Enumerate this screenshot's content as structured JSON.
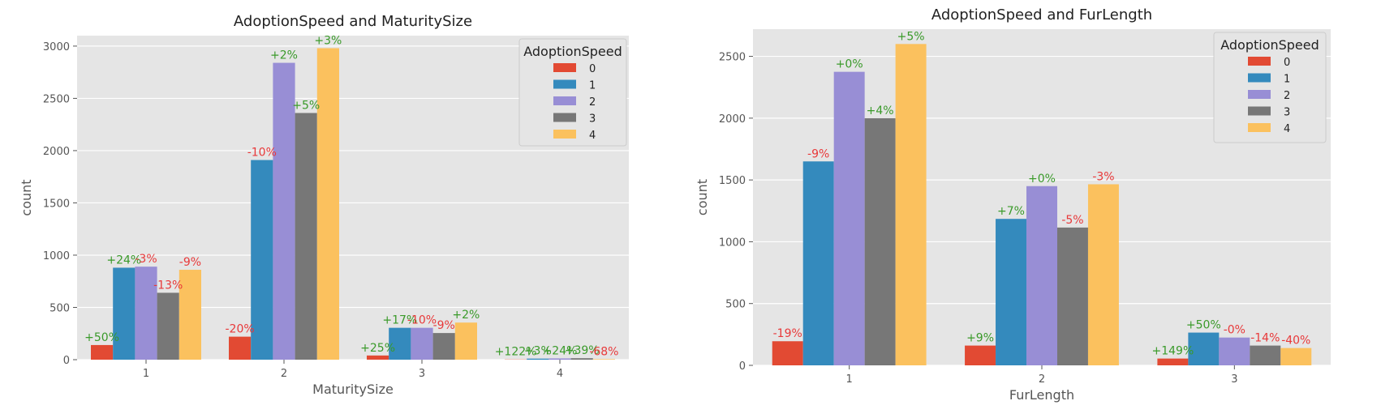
{
  "chart_data": [
    {
      "type": "bar",
      "title": "AdoptionSpeed and MaturitySize",
      "xlabel": "MaturitySize",
      "ylabel": "count",
      "ylim": [
        0,
        3100
      ],
      "yticks": [
        0,
        500,
        1000,
        1500,
        2000,
        2500,
        3000
      ],
      "grid": true,
      "categories": [
        "1",
        "2",
        "3",
        "4"
      ],
      "legend": {
        "title": "AdoptionSpeed",
        "position": "top-right"
      },
      "series": [
        {
          "name": "0",
          "color": "#E24A33",
          "values": [
            140,
            220,
            40,
            2
          ],
          "labels": [
            "+50%",
            "-20%",
            "+25%",
            "+122%"
          ]
        },
        {
          "name": "1",
          "color": "#348ABD",
          "values": [
            880,
            1910,
            305,
            10
          ],
          "labels": [
            "+24%",
            "-10%",
            "+17%",
            "+3%"
          ]
        },
        {
          "name": "2",
          "color": "#988ED5",
          "values": [
            890,
            2840,
            305,
            12
          ],
          "labels": [
            "-3%",
            "+2%",
            "-10%",
            "+24%"
          ]
        },
        {
          "name": "3",
          "color": "#777777",
          "values": [
            640,
            2360,
            255,
            14
          ],
          "labels": [
            "-13%",
            "+5%",
            "-9%",
            "+39%"
          ]
        },
        {
          "name": "4",
          "color": "#FBC15E",
          "values": [
            860,
            2980,
            355,
            5
          ],
          "labels": [
            "-9%",
            "+3%",
            "+2%",
            "-68%"
          ]
        }
      ]
    },
    {
      "type": "bar",
      "title": "AdoptionSpeed and FurLength",
      "xlabel": "FurLength",
      "ylabel": "count",
      "ylim": [
        0,
        2720
      ],
      "yticks": [
        0,
        500,
        1000,
        1500,
        2000,
        2500
      ],
      "grid": true,
      "categories": [
        "1",
        "2",
        "3"
      ],
      "legend": {
        "title": "AdoptionSpeed",
        "position": "top-right"
      },
      "series": [
        {
          "name": "0",
          "color": "#E24A33",
          "values": [
            195,
            160,
            55
          ],
          "labels": [
            "-19%",
            "+9%",
            "+149%"
          ]
        },
        {
          "name": "1",
          "color": "#348ABD",
          "values": [
            1650,
            1185,
            265
          ],
          "labels": [
            "-9%",
            "+7%",
            "+50%"
          ]
        },
        {
          "name": "2",
          "color": "#988ED5",
          "values": [
            2375,
            1450,
            225
          ],
          "labels": [
            "+0%",
            "+0%",
            "-0%"
          ]
        },
        {
          "name": "3",
          "color": "#777777",
          "values": [
            2000,
            1115,
            160
          ],
          "labels": [
            "+4%",
            "-5%",
            "-14%"
          ]
        },
        {
          "name": "4",
          "color": "#FBC15E",
          "values": [
            2600,
            1465,
            140
          ],
          "labels": [
            "+5%",
            "-3%",
            "-40%"
          ]
        }
      ]
    }
  ],
  "colors": {
    "positive": "#3a9a2a",
    "negative": "#e8393a",
    "plot_background": "#E5E5E5",
    "grid": "#FFFFFF"
  }
}
